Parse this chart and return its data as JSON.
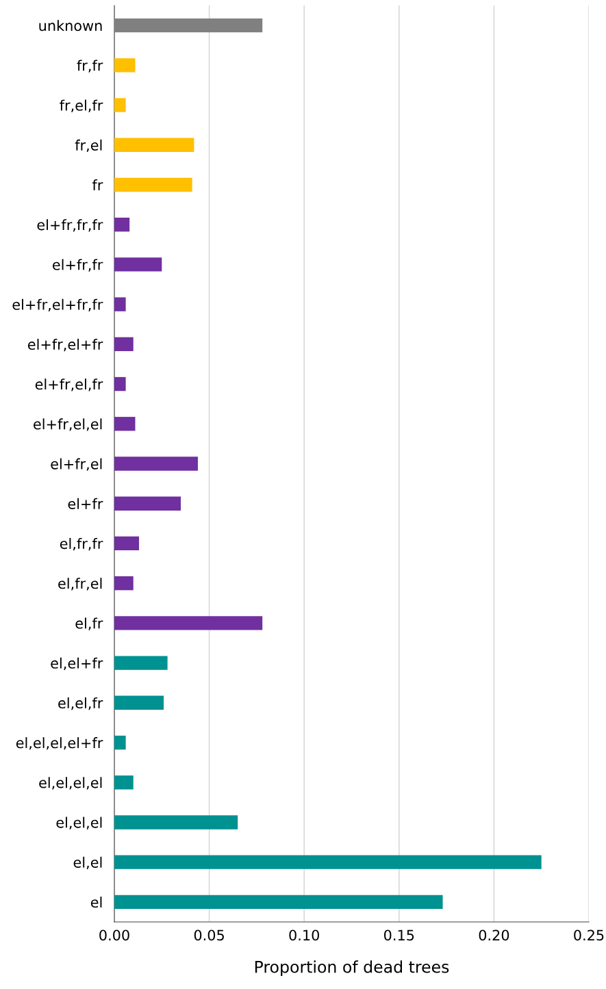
{
  "chart_data": {
    "type": "bar",
    "orientation": "horizontal",
    "xlabel": "Proportion of dead trees",
    "categories": [
      "unknown",
      "fr,fr",
      "fr,el,fr",
      "fr,el",
      "fr",
      "el+fr,fr,fr",
      "el+fr,fr",
      "el+fr,el+fr,fr",
      "el+fr,el+fr",
      "el+fr,el,fr",
      "el+fr,el,el",
      "el+fr,el",
      "el+fr",
      "el,fr,fr",
      "el,fr,el",
      "el,fr",
      "el,el+fr",
      "el,el,fr",
      "el,el,el,el+fr",
      "el,el,el,el",
      "el,el,el",
      "el,el",
      "el"
    ],
    "values": [
      0.078,
      0.011,
      0.006,
      0.042,
      0.041,
      0.008,
      0.025,
      0.006,
      0.01,
      0.006,
      0.011,
      0.044,
      0.035,
      0.013,
      0.01,
      0.078,
      0.028,
      0.026,
      0.006,
      0.01,
      0.065,
      0.225,
      0.173
    ],
    "colors": [
      "#808080",
      "#ffc000",
      "#ffc000",
      "#ffc000",
      "#ffc000",
      "#7030a0",
      "#7030a0",
      "#7030a0",
      "#7030a0",
      "#7030a0",
      "#7030a0",
      "#7030a0",
      "#7030a0",
      "#7030a0",
      "#7030a0",
      "#7030a0",
      "#009191",
      "#009191",
      "#009191",
      "#009191",
      "#009191",
      "#009191",
      "#009191"
    ],
    "xlim": [
      0,
      0.25
    ],
    "xticks": [
      {
        "value": 0,
        "label": "0.00"
      },
      {
        "value": 0.05,
        "label": "0.05"
      },
      {
        "value": 0.1,
        "label": "0.10"
      },
      {
        "value": 0.15,
        "label": "0.15"
      },
      {
        "value": 0.2,
        "label": "0.20"
      },
      {
        "value": 0.25,
        "label": "0.25"
      }
    ],
    "grid": "x"
  }
}
